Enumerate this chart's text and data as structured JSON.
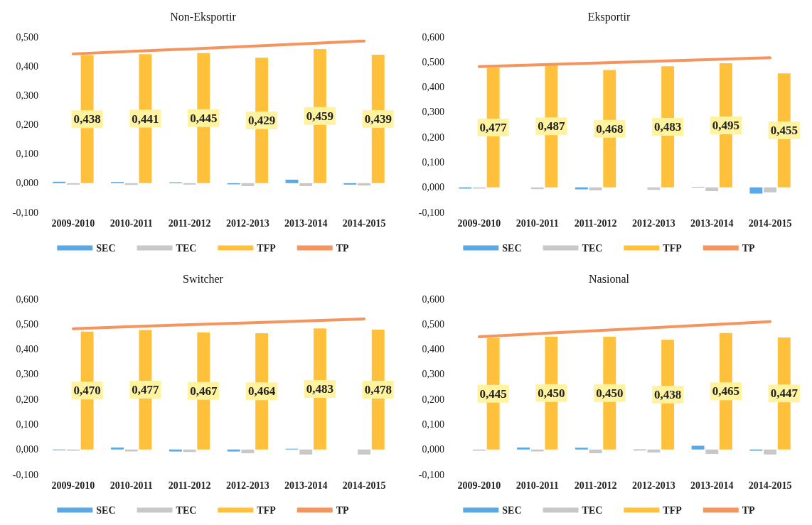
{
  "chart_data": [
    {
      "type": "bar",
      "title": "Non-Eksportir",
      "categories": [
        "2009-2010",
        "2010-2011",
        "2011-2012",
        "2012-2013",
        "2013-2014",
        "2014-2015"
      ],
      "ylim": [
        -0.1,
        0.5
      ],
      "yticks": [
        {
          "value": -0.1,
          "label": "-0,100"
        },
        {
          "value": 0,
          "label": "0,000"
        },
        {
          "value": 0.1,
          "label": "0,100"
        },
        {
          "value": 0.2,
          "label": "0,200"
        },
        {
          "value": 0.3,
          "label": "0,300"
        },
        {
          "value": 0.4,
          "label": "0,400"
        },
        {
          "value": 0.5,
          "label": "0,500"
        }
      ],
      "grid": false,
      "legend": "bottom",
      "series": [
        {
          "name": "SEC",
          "color": "#5aa9e6",
          "values": [
            0.005,
            0.004,
            0.003,
            -0.004,
            0.012,
            -0.005
          ]
        },
        {
          "name": "TEC",
          "color": "#c8c8c8",
          "values": [
            -0.005,
            -0.006,
            -0.005,
            -0.01,
            -0.01,
            -0.008
          ]
        },
        {
          "name": "TFP",
          "color": "#ffc13b",
          "values": [
            0.438,
            0.441,
            0.445,
            0.429,
            0.459,
            0.439
          ],
          "value_labels": [
            "0,438",
            "0,441",
            "0,445",
            "0,429",
            "0,459",
            "0,439"
          ]
        },
        {
          "name": "TP",
          "type": "line",
          "color": "#f4955f",
          "values": [
            0.442,
            0.451,
            0.459,
            0.468,
            0.477,
            0.486
          ]
        }
      ]
    },
    {
      "type": "bar",
      "title": "Eksportir",
      "categories": [
        "2009-2010",
        "2010-2011",
        "2011-2012",
        "2012-2013",
        "2013-2014",
        "2014-2015"
      ],
      "ylim": [
        -0.1,
        0.6
      ],
      "yticks": [
        {
          "value": -0.1,
          "label": "-0,100"
        },
        {
          "value": 0,
          "label": "0,000"
        },
        {
          "value": 0.1,
          "label": "0,100"
        },
        {
          "value": 0.2,
          "label": "0,200"
        },
        {
          "value": 0.3,
          "label": "0,300"
        },
        {
          "value": 0.4,
          "label": "0,400"
        },
        {
          "value": 0.5,
          "label": "0,500"
        },
        {
          "value": 0.6,
          "label": "0,600"
        }
      ],
      "grid": false,
      "legend": "bottom",
      "series": [
        {
          "name": "SEC",
          "color": "#5aa9e6",
          "values": [
            -0.005,
            0,
            -0.008,
            0,
            0.002,
            -0.025
          ]
        },
        {
          "name": "TEC",
          "color": "#c8c8c8",
          "values": [
            -0.005,
            -0.007,
            -0.012,
            -0.01,
            -0.015,
            -0.02
          ]
        },
        {
          "name": "TFP",
          "color": "#ffc13b",
          "values": [
            0.477,
            0.487,
            0.468,
            0.483,
            0.495,
            0.455
          ],
          "value_labels": [
            "0,477",
            "0,487",
            "0,468",
            "0,483",
            "0,495",
            "0,455"
          ]
        },
        {
          "name": "TP",
          "type": "line",
          "color": "#f4955f",
          "values": [
            0.482,
            0.489,
            0.496,
            0.503,
            0.51,
            0.517
          ]
        }
      ]
    },
    {
      "type": "bar",
      "title": "Switcher",
      "categories": [
        "2009-2010",
        "2010-2011",
        "2011-2012",
        "2012-2013",
        "2013-2014",
        "2014-2015"
      ],
      "ylim": [
        -0.1,
        0.6
      ],
      "yticks": [
        {
          "value": -0.1,
          "label": "-0,100"
        },
        {
          "value": 0,
          "label": "0,000"
        },
        {
          "value": 0.1,
          "label": "0,100"
        },
        {
          "value": 0.2,
          "label": "0,200"
        },
        {
          "value": 0.3,
          "label": "0,300"
        },
        {
          "value": 0.4,
          "label": "0,400"
        },
        {
          "value": 0.5,
          "label": "0,500"
        },
        {
          "value": 0.6,
          "label": "0,600"
        }
      ],
      "grid": false,
      "legend": "bottom",
      "series": [
        {
          "name": "SEC",
          "color": "#5aa9e6",
          "values": [
            -0.003,
            0.008,
            -0.008,
            -0.008,
            0.003,
            0
          ]
        },
        {
          "name": "TEC",
          "color": "#c8c8c8",
          "values": [
            -0.005,
            -0.008,
            -0.01,
            -0.015,
            -0.02,
            -0.02
          ]
        },
        {
          "name": "TFP",
          "color": "#ffc13b",
          "values": [
            0.47,
            0.477,
            0.467,
            0.464,
            0.483,
            0.478
          ],
          "value_labels": [
            "0,470",
            "0,477",
            "0,467",
            "0,464",
            "0,483",
            "0,478"
          ]
        },
        {
          "name": "TP",
          "type": "line",
          "color": "#f4955f",
          "values": [
            0.482,
            0.49,
            0.498,
            0.505,
            0.513,
            0.521
          ]
        }
      ]
    },
    {
      "type": "bar",
      "title": "Nasional",
      "categories": [
        "2009-2010",
        "2010-2011",
        "2011-2012",
        "2012-2013",
        "2013-2014",
        "2014-2015"
      ],
      "ylim": [
        -0.1,
        0.6
      ],
      "yticks": [
        {
          "value": -0.1,
          "label": "-0,100"
        },
        {
          "value": 0,
          "label": "0,000"
        },
        {
          "value": 0.1,
          "label": "0,100"
        },
        {
          "value": 0.2,
          "label": "0,200"
        },
        {
          "value": 0.3,
          "label": "0,300"
        },
        {
          "value": 0.4,
          "label": "0,400"
        },
        {
          "value": 0.5,
          "label": "0,500"
        },
        {
          "value": 0.6,
          "label": "0,600"
        }
      ],
      "grid": false,
      "legend": "bottom",
      "series": [
        {
          "name": "SEC",
          "color": "#5aa9e6",
          "values": [
            0,
            0.008,
            0.007,
            -0.003,
            0.015,
            -0.005
          ]
        },
        {
          "name": "TEC",
          "color": "#c8c8c8",
          "values": [
            -0.005,
            -0.008,
            -0.015,
            -0.012,
            -0.018,
            -0.02
          ]
        },
        {
          "name": "TFP",
          "color": "#ffc13b",
          "values": [
            0.445,
            0.45,
            0.45,
            0.438,
            0.465,
            0.447
          ],
          "value_labels": [
            "0,445",
            "0,450",
            "0,450",
            "0,438",
            "0,465",
            "0,447"
          ]
        },
        {
          "name": "TP",
          "type": "line",
          "color": "#f4955f",
          "values": [
            0.45,
            0.462,
            0.474,
            0.486,
            0.498,
            0.51
          ]
        }
      ]
    }
  ]
}
